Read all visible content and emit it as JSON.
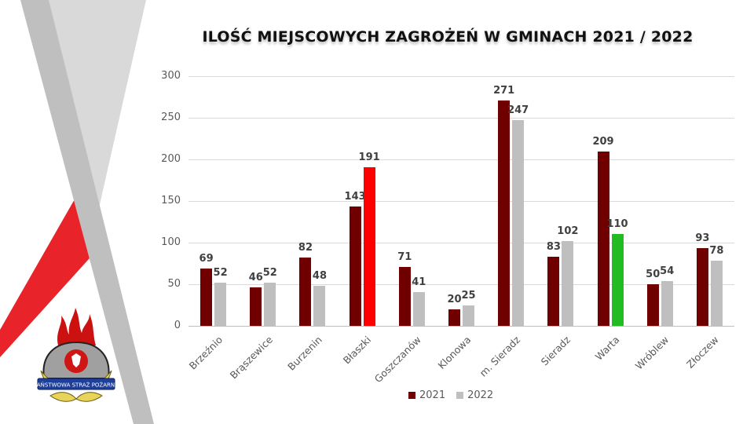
{
  "chart_data": {
    "type": "bar",
    "title": "ILOŚĆ MIEJSCOWYCH ZAGROŻEŃ W GMINACH 2021 / 2022",
    "xlabel": "",
    "ylabel": "",
    "ylim": [
      0,
      300
    ],
    "yticks": [
      0,
      50,
      100,
      150,
      200,
      250,
      300
    ],
    "grid": true,
    "legend_position": "bottom",
    "categories": [
      "Brzeźnio",
      "Brąszewice",
      "Burzenin",
      "Błaszki",
      "Goszczanów",
      "Klonowa",
      "m. Sieradz",
      "Sieradz",
      "Warta",
      "Wróblew",
      "Złoczew"
    ],
    "series": [
      {
        "name": "2021",
        "color": "#700000",
        "values": [
          69,
          46,
          82,
          143,
          71,
          20,
          271,
          83,
          209,
          50,
          93
        ]
      },
      {
        "name": "2022",
        "color": "#bfbfbf",
        "values": [
          52,
          52,
          48,
          191,
          41,
          25,
          247,
          102,
          110,
          54,
          78
        ],
        "point_colors": {
          "3": "#ff0000",
          "8": "#22bb22"
        }
      }
    ]
  },
  "title": "ILOŚĆ MIEJSCOWYCH ZAGROŻEŃ W GMINACH 2021 / 2022",
  "legend": [
    {
      "label": "2021",
      "color": "#700000"
    },
    {
      "label": "2022",
      "color": "#bfbfbf"
    }
  ],
  "logo": {
    "banner_text": "PAŃSTWOWA STRAŻ POŻARNA"
  },
  "colors": {
    "accent_red": "#e8232a",
    "gray_band": "#bfbfbf",
    "light_gray": "#d9d9d9"
  }
}
